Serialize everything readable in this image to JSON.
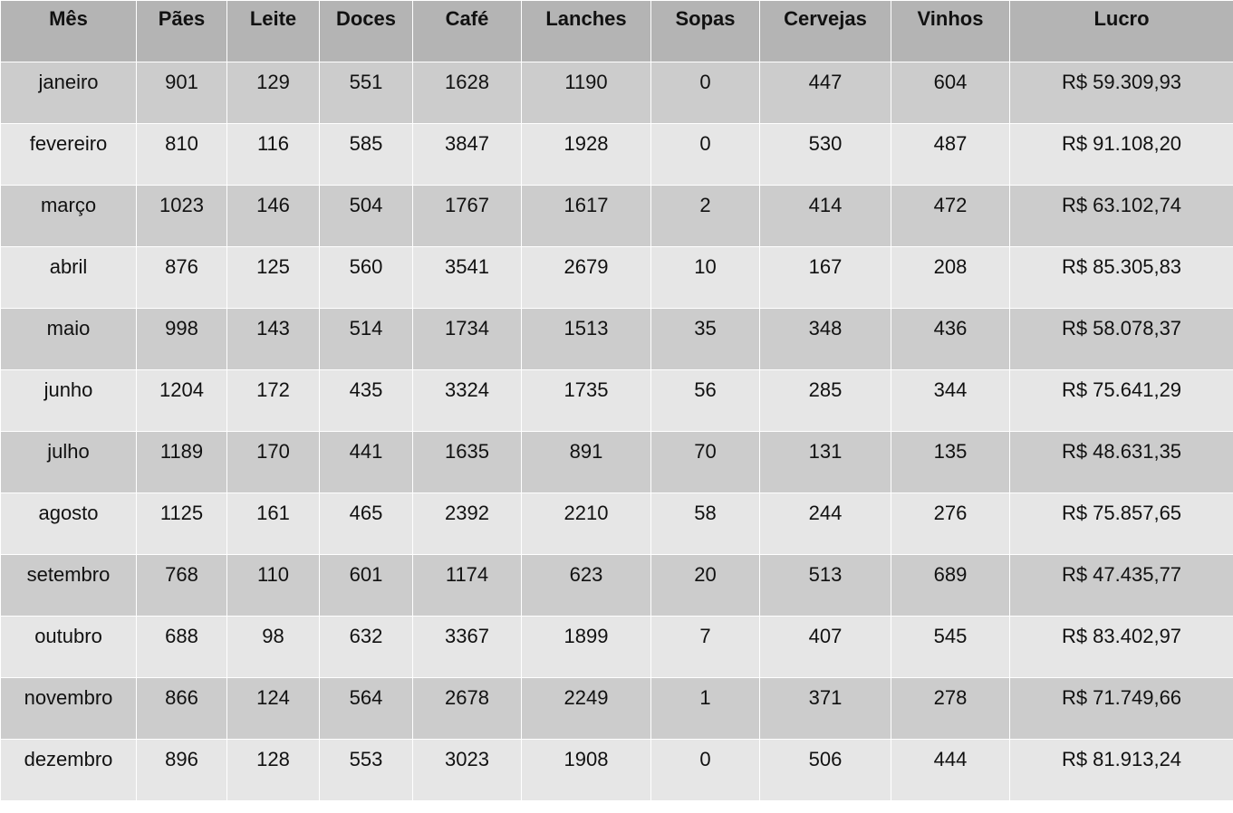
{
  "table": {
    "headers": [
      "Mês",
      "Pães",
      "Leite",
      "Doces",
      "Café",
      "Lanches",
      "Sopas",
      "Cervejas",
      "Vinhos",
      "Lucro"
    ],
    "rows": [
      [
        "janeiro",
        "901",
        "129",
        "551",
        "1628",
        "1190",
        "0",
        "447",
        "604",
        "R$ 59.309,93"
      ],
      [
        "fevereiro",
        "810",
        "116",
        "585",
        "3847",
        "1928",
        "0",
        "530",
        "487",
        "R$ 91.108,20"
      ],
      [
        "março",
        "1023",
        "146",
        "504",
        "1767",
        "1617",
        "2",
        "414",
        "472",
        "R$ 63.102,74"
      ],
      [
        "abril",
        "876",
        "125",
        "560",
        "3541",
        "2679",
        "10",
        "167",
        "208",
        "R$ 85.305,83"
      ],
      [
        "maio",
        "998",
        "143",
        "514",
        "1734",
        "1513",
        "35",
        "348",
        "436",
        "R$ 58.078,37"
      ],
      [
        "junho",
        "1204",
        "172",
        "435",
        "3324",
        "1735",
        "56",
        "285",
        "344",
        "R$ 75.641,29"
      ],
      [
        "julho",
        "1189",
        "170",
        "441",
        "1635",
        "891",
        "70",
        "131",
        "135",
        "R$ 48.631,35"
      ],
      [
        "agosto",
        "1125",
        "161",
        "465",
        "2392",
        "2210",
        "58",
        "244",
        "276",
        "R$ 75.857,65"
      ],
      [
        "setembro",
        "768",
        "110",
        "601",
        "1174",
        "623",
        "20",
        "513",
        "689",
        "R$ 47.435,77"
      ],
      [
        "outubro",
        "688",
        "98",
        "632",
        "3367",
        "1899",
        "7",
        "407",
        "545",
        "R$ 83.402,97"
      ],
      [
        "novembro",
        "866",
        "124",
        "564",
        "2678",
        "2249",
        "1",
        "371",
        "278",
        "R$ 71.749,66"
      ],
      [
        "dezembro",
        "896",
        "128",
        "553",
        "3023",
        "1908",
        "0",
        "506",
        "444",
        "R$ 81.913,24"
      ]
    ]
  },
  "colors": {
    "header_bg": "#b4b4b4",
    "odd_row_bg": "#cccccc",
    "even_row_bg": "#e6e6e6",
    "grid_line": "#ffffff"
  }
}
